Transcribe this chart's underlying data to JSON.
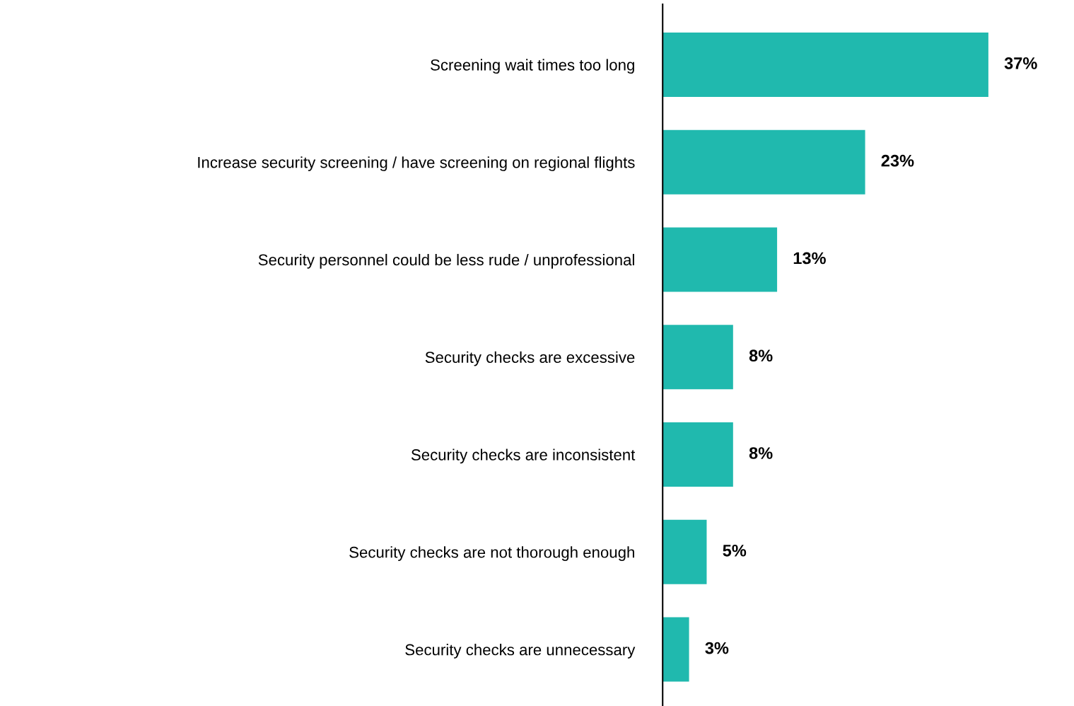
{
  "chart_data": {
    "type": "bar",
    "orientation": "horizontal",
    "categories": [
      "Screening wait times too long",
      "Increase security screening / have screening on regional flights",
      "Security personnel could be less rude / unprofessional",
      "Security checks are excessive",
      "Security checks are inconsistent",
      "Security checks are not thorough enough",
      "Security checks are unnecessary"
    ],
    "values": [
      37,
      23,
      13,
      8,
      8,
      5,
      3
    ],
    "value_labels": [
      "37%",
      "23%",
      "13%",
      "8%",
      "8%",
      "5%",
      "3%"
    ],
    "color": "#20b9ae",
    "tick_labels": "y",
    "grid": false,
    "legend": false
  }
}
